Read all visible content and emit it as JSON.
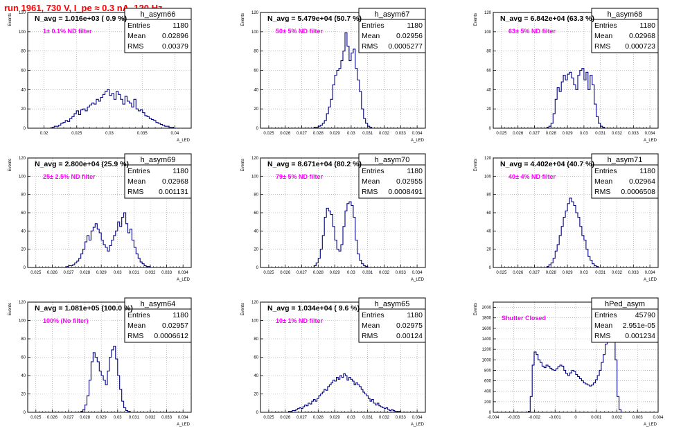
{
  "header": "run 1961,   730 V, I_pe ≈ 0.3 nA, 120 Hz",
  "colors": {
    "header": "#ff0000",
    "line": "#000080",
    "filter_text": "#ff00ff",
    "frame": "#000000"
  },
  "chart_data": [
    {
      "type": "histogram",
      "name": "h_asym66",
      "title": "N_avg = 1.016e+03 ( 0.9 %)",
      "filter_label": "1± 0.1% ND filter",
      "stats": {
        "entries": "1180",
        "mean": "0.02896",
        "rms": "0.00379"
      },
      "ylabel": "Events",
      "xlabel": "A_LED",
      "xlim": [
        0.0175,
        0.0425
      ],
      "ylim": [
        0,
        120
      ],
      "xticks": [
        0.02,
        0.025,
        0.03,
        0.035,
        0.04
      ],
      "xtick_labels": [
        "0.02",
        "0.025",
        "0.03",
        "0.035",
        "0.04"
      ],
      "yticks": [
        0,
        20,
        40,
        60,
        80,
        100,
        120
      ],
      "ytick_labels": [
        "0",
        "20",
        "40",
        "60",
        "80",
        "100",
        "120"
      ],
      "bins": {
        "x_start": 0.0175,
        "x_end": 0.0425,
        "values": [
          0,
          0,
          0,
          0,
          0,
          0,
          0,
          0,
          0,
          0,
          0,
          1,
          2,
          2,
          3,
          5,
          6,
          8,
          7,
          10,
          12,
          15,
          18,
          14,
          19,
          20,
          18,
          22,
          24,
          26,
          25,
          30,
          28,
          32,
          35,
          38,
          40,
          34,
          36,
          30,
          38,
          35,
          30,
          25,
          33,
          28,
          26,
          22,
          30,
          20,
          18,
          19,
          16,
          13,
          12,
          10,
          9,
          8,
          6,
          5,
          4,
          3,
          2,
          2,
          1,
          1,
          0,
          0,
          0,
          0,
          0,
          0,
          0,
          0
        ]
      }
    },
    {
      "type": "histogram",
      "name": "h_asym67",
      "title": "N_avg = 5.479e+04 (50.7 %)",
      "filter_label": "50± 5% ND filter",
      "stats": {
        "entries": "1180",
        "mean": "0.02956",
        "rms": "0.0005277"
      },
      "ylabel": "Events",
      "xlabel": "A_LED",
      "xlim": [
        0.0245,
        0.0345
      ],
      "ylim": [
        0,
        120
      ],
      "xticks": [
        0.025,
        0.026,
        0.027,
        0.028,
        0.029,
        0.03,
        0.031,
        0.032,
        0.033,
        0.034
      ],
      "xtick_labels": [
        "0.025",
        "0.026",
        "0.027",
        "0.028",
        "0.029",
        "0.03",
        "0.031",
        "0.032",
        "0.033",
        "0.034"
      ],
      "yticks": [
        0,
        20,
        40,
        60,
        80,
        100,
        120
      ],
      "ytick_labels": [
        "0",
        "20",
        "40",
        "60",
        "80",
        "100",
        "120"
      ],
      "bins": {
        "x_start": 0.0275,
        "x_end": 0.0315,
        "values": [
          0,
          0,
          1,
          1,
          2,
          3,
          5,
          8,
          15,
          22,
          30,
          45,
          55,
          60,
          62,
          70,
          80,
          99,
          85,
          70,
          78,
          82,
          62,
          50,
          38,
          20,
          10,
          5,
          2,
          1,
          0,
          0
        ]
      }
    },
    {
      "type": "histogram",
      "name": "h_asym68",
      "title": "N_avg = 6.842e+04 (63.3 %)",
      "filter_label": "63± 5% ND filter",
      "stats": {
        "entries": "1180",
        "mean": "0.02968",
        "rms": "0.000723"
      },
      "ylabel": "Events",
      "xlabel": "A_LED",
      "xlim": [
        0.0245,
        0.0345
      ],
      "ylim": [
        0,
        120
      ],
      "xticks": [
        0.025,
        0.026,
        0.027,
        0.028,
        0.029,
        0.03,
        0.031,
        0.032,
        0.033,
        0.034
      ],
      "xtick_labels": [
        "0.025",
        "0.026",
        "0.027",
        "0.028",
        "0.029",
        "0.03",
        "0.031",
        "0.032",
        "0.033",
        "0.034"
      ],
      "yticks": [
        0,
        20,
        40,
        60,
        80,
        100,
        120
      ],
      "ytick_labels": [
        "0",
        "20",
        "40",
        "60",
        "80",
        "100",
        "120"
      ],
      "bins": {
        "x_start": 0.0275,
        "x_end": 0.032,
        "values": [
          0,
          0,
          1,
          2,
          5,
          15,
          30,
          42,
          38,
          48,
          55,
          50,
          56,
          58,
          52,
          45,
          40,
          55,
          60,
          62,
          50,
          58,
          40,
          55,
          45,
          25,
          12,
          5,
          2,
          1,
          0,
          0,
          0,
          0,
          0,
          0
        ]
      }
    },
    {
      "type": "histogram",
      "name": "h_asym69",
      "title": "N_avg = 2.800e+04 (25.9 %)",
      "filter_label": "25± 2.5% ND filter",
      "stats": {
        "entries": "1180",
        "mean": "0.02968",
        "rms": "0.001131"
      },
      "ylabel": "Events",
      "xlabel": "A_LED",
      "xlim": [
        0.0245,
        0.0345
      ],
      "ylim": [
        0,
        120
      ],
      "xticks": [
        0.025,
        0.026,
        0.027,
        0.028,
        0.029,
        0.03,
        0.031,
        0.032,
        0.033,
        0.034
      ],
      "xtick_labels": [
        "0.025",
        "0.026",
        "0.027",
        "0.028",
        "0.029",
        "0.03",
        "0.031",
        "0.032",
        "0.033",
        "0.034"
      ],
      "yticks": [
        0,
        20,
        40,
        60,
        80,
        100,
        120
      ],
      "ytick_labels": [
        "0",
        "20",
        "40",
        "60",
        "80",
        "100",
        "120"
      ],
      "bins": {
        "x_start": 0.0265,
        "x_end": 0.0325,
        "values": [
          0,
          0,
          0,
          1,
          2,
          2,
          3,
          5,
          7,
          10,
          15,
          20,
          28,
          35,
          30,
          40,
          44,
          48,
          42,
          38,
          30,
          25,
          22,
          18,
          24,
          30,
          35,
          40,
          50,
          45,
          55,
          60,
          48,
          38,
          42,
          30,
          22,
          15,
          10,
          6,
          4,
          2,
          1,
          1,
          0,
          0,
          0,
          0
        ]
      }
    },
    {
      "type": "histogram",
      "name": "h_asym70",
      "title": "N_avg = 8.671e+04 (80.2 %)",
      "filter_label": "79± 5% ND filter",
      "stats": {
        "entries": "1180",
        "mean": "0.02955",
        "rms": "0.0008491"
      },
      "ylabel": "Events",
      "xlabel": "A_LED",
      "xlim": [
        0.0245,
        0.0345
      ],
      "ylim": [
        0,
        120
      ],
      "xticks": [
        0.025,
        0.026,
        0.027,
        0.028,
        0.029,
        0.03,
        0.031,
        0.032,
        0.033,
        0.034
      ],
      "xtick_labels": [
        "0.025",
        "0.026",
        "0.027",
        "0.028",
        "0.029",
        "0.03",
        "0.031",
        "0.032",
        "0.033",
        "0.034"
      ],
      "yticks": [
        0,
        20,
        40,
        60,
        80,
        100,
        120
      ],
      "ytick_labels": [
        "0",
        "20",
        "40",
        "60",
        "80",
        "100",
        "120"
      ],
      "bins": {
        "x_start": 0.0275,
        "x_end": 0.032,
        "values": [
          0,
          0,
          2,
          5,
          10,
          20,
          35,
          55,
          65,
          62,
          58,
          45,
          30,
          20,
          18,
          25,
          45,
          62,
          70,
          72,
          68,
          55,
          30,
          15,
          8,
          4,
          2,
          1,
          0,
          0,
          0,
          0,
          0,
          0,
          0,
          0
        ]
      }
    },
    {
      "type": "histogram",
      "name": "h_asym71",
      "title": "N_avg = 4.402e+04 (40.7 %)",
      "filter_label": "40± 4% ND filter",
      "stats": {
        "entries": "1180",
        "mean": "0.02964",
        "rms": "0.0006508"
      },
      "ylabel": "Events",
      "xlabel": "A_LED",
      "xlim": [
        0.0245,
        0.0345
      ],
      "ylim": [
        0,
        120
      ],
      "xticks": [
        0.025,
        0.026,
        0.027,
        0.028,
        0.029,
        0.03,
        0.031,
        0.032,
        0.033,
        0.034
      ],
      "xtick_labels": [
        "0.025",
        "0.026",
        "0.027",
        "0.028",
        "0.029",
        "0.03",
        "0.031",
        "0.032",
        "0.033",
        "0.034"
      ],
      "yticks": [
        0,
        20,
        40,
        60,
        80,
        100,
        120
      ],
      "ytick_labels": [
        "0",
        "20",
        "40",
        "60",
        "80",
        "100",
        "120"
      ],
      "bins": {
        "x_start": 0.0275,
        "x_end": 0.032,
        "values": [
          0,
          0,
          1,
          3,
          5,
          10,
          18,
          25,
          35,
          45,
          55,
          62,
          70,
          76,
          72,
          68,
          60,
          55,
          45,
          35,
          30,
          20,
          12,
          8,
          4,
          2,
          1,
          0,
          0,
          0,
          0,
          0,
          0,
          0,
          0,
          0
        ]
      }
    },
    {
      "type": "histogram",
      "name": "h_asym64",
      "title": "N_avg = 1.081e+05 (100.0 %)",
      "filter_label": "100% (No filter)",
      "stats": {
        "entries": "1180",
        "mean": "0.02957",
        "rms": "0.0006612"
      },
      "ylabel": "Events",
      "xlabel": "A_LED",
      "xlim": [
        0.0245,
        0.0345
      ],
      "ylim": [
        0,
        120
      ],
      "xticks": [
        0.025,
        0.026,
        0.027,
        0.028,
        0.029,
        0.03,
        0.031,
        0.032,
        0.033,
        0.034
      ],
      "xtick_labels": [
        "0.025",
        "0.026",
        "0.027",
        "0.028",
        "0.029",
        "0.03",
        "0.031",
        "0.032",
        "0.033",
        "0.034"
      ],
      "yticks": [
        0,
        20,
        40,
        60,
        80,
        100,
        120
      ],
      "ytick_labels": [
        "0",
        "20",
        "40",
        "60",
        "80",
        "100",
        "120"
      ],
      "bins": {
        "x_start": 0.0275,
        "x_end": 0.032,
        "values": [
          0,
          0,
          1,
          3,
          8,
          18,
          35,
          55,
          65,
          60,
          55,
          45,
          40,
          35,
          30,
          45,
          60,
          68,
          72,
          58,
          40,
          25,
          12,
          5,
          2,
          1,
          0,
          0,
          0,
          0,
          0,
          0,
          0,
          0,
          0,
          0
        ]
      }
    },
    {
      "type": "histogram",
      "name": "h_asym65",
      "title": "N_avg = 1.034e+04 ( 9.6 %)",
      "filter_label": "10± 1% ND filter",
      "stats": {
        "entries": "1180",
        "mean": "0.02975",
        "rms": "0.00124"
      },
      "ylabel": "Events",
      "xlabel": "A_LED",
      "xlim": [
        0.0245,
        0.0345
      ],
      "ylim": [
        0,
        120
      ],
      "xticks": [
        0.025,
        0.026,
        0.027,
        0.028,
        0.029,
        0.03,
        0.031,
        0.032,
        0.033,
        0.034
      ],
      "xtick_labels": [
        "0.025",
        "0.026",
        "0.027",
        "0.028",
        "0.029",
        "0.03",
        "0.031",
        "0.032",
        "0.033",
        "0.034"
      ],
      "yticks": [
        0,
        20,
        40,
        60,
        80,
        100,
        120
      ],
      "ytick_labels": [
        "0",
        "20",
        "40",
        "60",
        "80",
        "100",
        "120"
      ],
      "bins": {
        "x_start": 0.026,
        "x_end": 0.0335,
        "values": [
          0,
          0,
          1,
          1,
          2,
          2,
          3,
          4,
          5,
          4,
          6,
          8,
          7,
          10,
          9,
          12,
          14,
          12,
          15,
          18,
          20,
          22,
          25,
          24,
          28,
          30,
          32,
          35,
          34,
          38,
          36,
          40,
          38,
          42,
          40,
          35,
          38,
          36,
          34,
          30,
          32,
          30,
          28,
          25,
          22,
          20,
          18,
          15,
          12,
          14,
          10,
          8,
          10,
          7,
          6,
          5,
          4,
          5,
          3,
          2,
          3,
          2,
          1,
          1,
          1,
          0,
          0,
          0,
          0,
          0
        ]
      }
    },
    {
      "type": "histogram",
      "name": "hPed_asym",
      "title": "",
      "filter_label": "Shutter Closed",
      "stats": {
        "entries": "45790",
        "mean": "2.951e-05",
        "rms": "0.001234"
      },
      "ylabel": "Events",
      "xlabel": "A_LED",
      "xlim": [
        -0.004,
        0.004
      ],
      "ylim": [
        0,
        2100
      ],
      "xticks": [
        -0.004,
        -0.003,
        -0.002,
        -0.001,
        0,
        0.001,
        0.002,
        0.003,
        0.004
      ],
      "xtick_labels": [
        "-0.004",
        "-0.003",
        "-0.002",
        "-0.001",
        "0",
        "0.001",
        "0.002",
        "0.003",
        "0.004"
      ],
      "yticks": [
        0,
        200,
        400,
        600,
        800,
        1000,
        1200,
        1400,
        1600,
        1800,
        2000
      ],
      "ytick_labels": [
        "0",
        "200",
        "400",
        "600",
        "800",
        "1000",
        "1200",
        "1400",
        "1600",
        "1800",
        "2000"
      ],
      "bins": {
        "x_start": -0.0024,
        "x_end": 0.0022,
        "values": [
          0,
          20,
          300,
          900,
          1150,
          1100,
          1000,
          950,
          880,
          850,
          900,
          880,
          840,
          810,
          800,
          830,
          870,
          900,
          880,
          800,
          740,
          700,
          750,
          800,
          780,
          720,
          680,
          640,
          600,
          560,
          540,
          520,
          500,
          520,
          560,
          620,
          700,
          800,
          950,
          1100,
          1300,
          1500,
          1700,
          2000,
          1800,
          1000,
          300,
          50
        ]
      }
    }
  ]
}
